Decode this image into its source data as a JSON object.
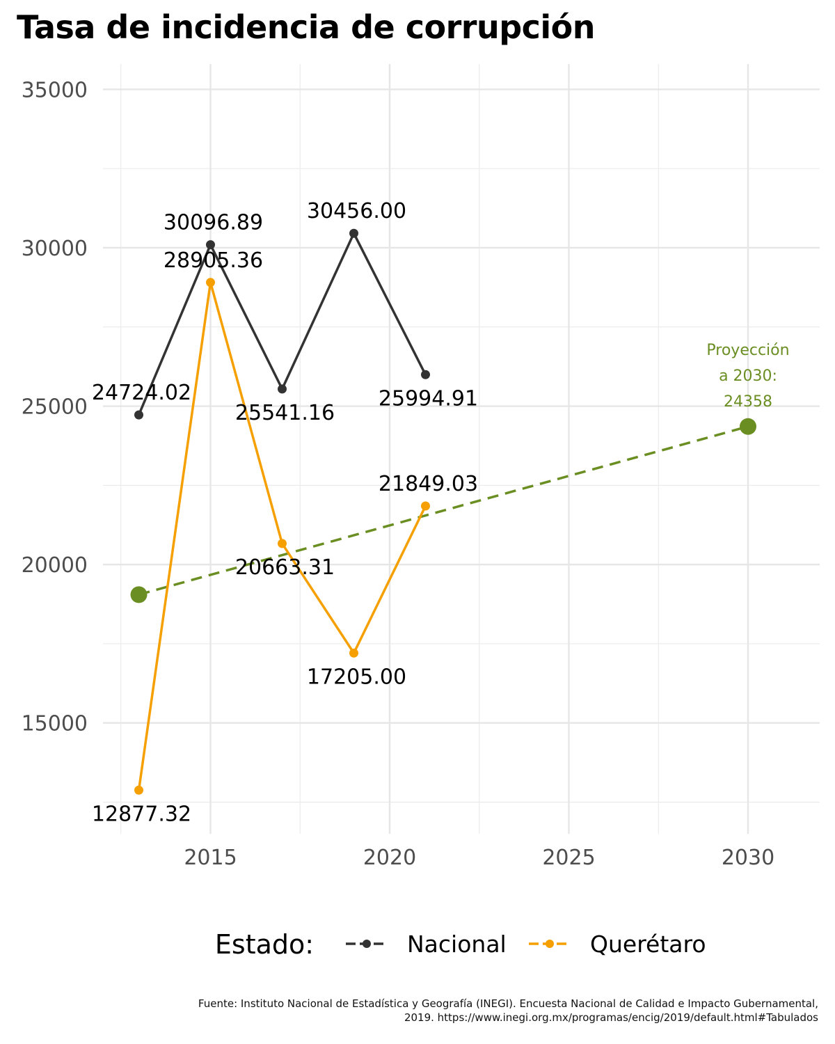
{
  "chart_data": {
    "type": "line",
    "title": "Tasa de incidencia de corrupción",
    "xlabel": "",
    "ylabel": "",
    "xlim": [
      2012,
      2032
    ],
    "ylim": [
      11500,
      35800
    ],
    "x_ticks": [
      2015,
      2020,
      2025,
      2030
    ],
    "y_ticks": [
      15000,
      20000,
      25000,
      30000,
      35000
    ],
    "grid": true,
    "series": [
      {
        "name": "Nacional",
        "color": "#333333",
        "points": [
          {
            "x": 2013,
            "y": 24724.02,
            "label": "24724.02"
          },
          {
            "x": 2015,
            "y": 30096.89,
            "label": "30096.89"
          },
          {
            "x": 2017,
            "y": 25541.16,
            "label": "25541.16"
          },
          {
            "x": 2019,
            "y": 30456.0,
            "label": "30456.00"
          },
          {
            "x": 2021,
            "y": 25994.91,
            "label": "25994.91"
          }
        ]
      },
      {
        "name": "Querétaro",
        "color": "#f5a000",
        "points": [
          {
            "x": 2013,
            "y": 12877.32,
            "label": "12877.32"
          },
          {
            "x": 2015,
            "y": 28905.36,
            "label": "28905.36"
          },
          {
            "x": 2017,
            "y": 20663.31,
            "label": "20663.31"
          },
          {
            "x": 2019,
            "y": 17205.0,
            "label": "17205.00"
          },
          {
            "x": 2021,
            "y": 21849.03,
            "label": "21849.03"
          }
        ]
      }
    ],
    "trend": {
      "color": "#6b8e23",
      "style": "dashed",
      "start": {
        "x": 2013,
        "y": 19050
      },
      "end": {
        "x": 2030,
        "y": 24358
      },
      "annotation_lines": [
        "Proyección",
        "a 2030:",
        "24358"
      ]
    },
    "legend": {
      "title": "Estado:",
      "position": "bottom",
      "entries": [
        "Nacional",
        "Querétaro"
      ]
    }
  },
  "caption_lines": [
    "Fuente: Instituto Nacional de Estadística y Geografía (INEGI). Encuesta Nacional de Calidad e Impacto Gubernamental,",
    "2019. https://www.inegi.org.mx/programas/encig/2019/default.html#Tabulados"
  ]
}
